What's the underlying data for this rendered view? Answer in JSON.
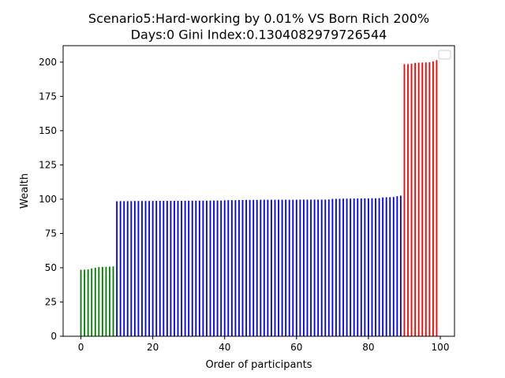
{
  "chart_data": {
    "type": "bar",
    "title": "Scenario5:Hard-working by 0.01% VS Born Rich 200%",
    "subtitle": "Days:0  Gini Index:0.1304082979726544",
    "xlabel": "Order of participants",
    "ylabel": "Wealth",
    "xlim": [
      -4.95,
      103.95
    ],
    "ylim": [
      0,
      212
    ],
    "xticks": [
      0,
      20,
      40,
      60,
      80,
      100
    ],
    "yticks": [
      0,
      25,
      50,
      75,
      100,
      125,
      150,
      175,
      200
    ],
    "legend": "top-right",
    "grid": false,
    "series": [
      {
        "color": "#008000",
        "x": [
          0,
          1,
          2,
          3,
          4,
          5,
          6,
          7,
          8,
          9
        ],
        "values": [
          48.5,
          48.6,
          48.8,
          49.5,
          50.0,
          50.5,
          50.6,
          50.7,
          50.8,
          51.0
        ]
      },
      {
        "color": "#0000ff",
        "x": [
          10,
          11,
          12,
          13,
          14,
          15,
          16,
          17,
          18,
          19,
          20,
          21,
          22,
          23,
          24,
          25,
          26,
          27,
          28,
          29,
          30,
          31,
          32,
          33,
          34,
          35,
          36,
          37,
          38,
          39,
          40,
          41,
          42,
          43,
          44,
          45,
          46,
          47,
          48,
          49,
          50,
          51,
          52,
          53,
          54,
          55,
          56,
          57,
          58,
          59,
          60,
          61,
          62,
          63,
          64,
          65,
          66,
          67,
          68,
          69,
          70,
          71,
          72,
          73,
          74,
          75,
          76,
          77,
          78,
          79,
          80,
          81,
          82,
          83,
          84,
          85,
          86,
          87,
          88,
          89
        ],
        "values": [
          98.5,
          98.6,
          98.6,
          98.6,
          98.6,
          98.7,
          98.7,
          98.7,
          98.7,
          98.7,
          98.7,
          98.8,
          98.8,
          98.8,
          98.8,
          98.8,
          98.8,
          98.8,
          98.8,
          98.9,
          98.9,
          98.9,
          98.9,
          98.9,
          98.9,
          98.9,
          99.0,
          99.0,
          99.0,
          99.0,
          99.2,
          99.3,
          99.3,
          99.3,
          99.4,
          99.4,
          99.5,
          99.5,
          99.5,
          99.5,
          99.6,
          99.6,
          99.6,
          99.6,
          99.6,
          99.6,
          99.6,
          99.6,
          99.6,
          99.6,
          99.6,
          99.7,
          99.7,
          99.7,
          99.7,
          99.7,
          99.7,
          99.7,
          99.7,
          99.8,
          100.2,
          100.3,
          100.3,
          100.4,
          100.4,
          100.4,
          100.5,
          100.5,
          100.5,
          100.6,
          100.6,
          100.7,
          100.7,
          100.8,
          101.3,
          101.4,
          101.5,
          101.6,
          102.2,
          102.6
        ]
      },
      {
        "color": "#ff0000",
        "x": [
          90,
          91,
          92,
          93,
          94,
          95,
          96,
          97,
          98,
          99
        ],
        "values": [
          198.5,
          198.6,
          198.8,
          199.5,
          199.6,
          199.7,
          199.8,
          199.9,
          200.5,
          201.5
        ]
      }
    ]
  }
}
